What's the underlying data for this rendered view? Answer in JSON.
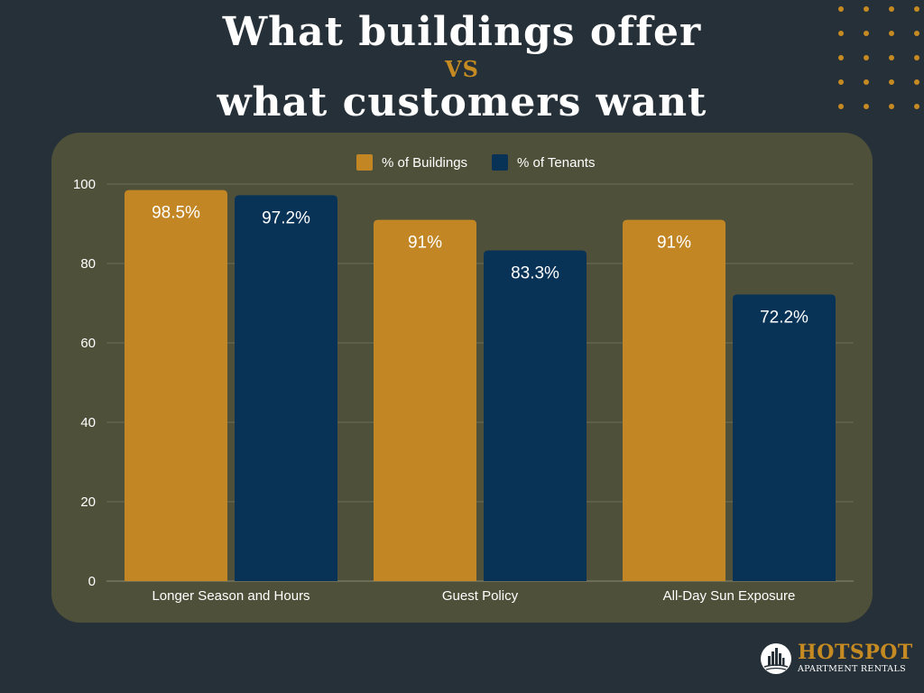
{
  "header": {
    "title_line1": "What buildings offer",
    "title_vs": "VS",
    "title_line2": "what customers want"
  },
  "colors": {
    "background": "#263038",
    "panel": "#4f5039",
    "buildings": "#c28625",
    "tenants": "#083357",
    "accent": "#c58b22"
  },
  "chart_data": {
    "type": "bar",
    "categories": [
      "Longer Season and Hours",
      "Guest Policy",
      "All-Day Sun Exposure"
    ],
    "series": [
      {
        "name": "% of Buildings",
        "values": [
          98.5,
          91,
          91
        ],
        "labels": [
          "98.5%",
          "91%",
          "91%"
        ],
        "color": "#c28625"
      },
      {
        "name": "% of Tenants",
        "values": [
          97.2,
          83.3,
          72.2
        ],
        "labels": [
          "97.2%",
          "83.3%",
          "72.2%"
        ],
        "color": "#083357"
      }
    ],
    "ylim": [
      0,
      100
    ],
    "yticks": [
      0,
      20,
      40,
      60,
      80,
      100
    ],
    "grid": true,
    "legend": "top-center",
    "xlabel": "",
    "ylabel": ""
  },
  "logo": {
    "name": "HOTSPOT",
    "subtitle": "APARTMENT RENTALS",
    "icon": "city-skyline-icon"
  }
}
